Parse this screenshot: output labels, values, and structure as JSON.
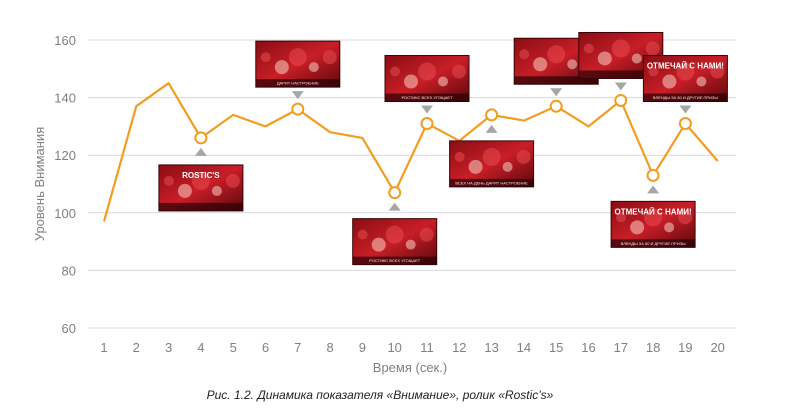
{
  "chart_data": {
    "type": "line",
    "x": [
      1,
      2,
      3,
      4,
      5,
      6,
      7,
      8,
      9,
      10,
      11,
      12,
      13,
      14,
      15,
      16,
      17,
      18,
      19,
      20
    ],
    "series": [
      {
        "values": [
          97,
          137,
          145,
          126,
          134,
          130,
          136,
          128,
          126,
          107,
          131,
          125,
          134,
          132,
          137,
          130,
          139,
          113,
          131,
          118
        ]
      }
    ],
    "highlighted_x": [
      4,
      7,
      10,
      11,
      13,
      15,
      17,
      18,
      19
    ],
    "xlabel": "Время (сек.)",
    "ylabel": "Уровень Внимания",
    "ylim": [
      60,
      160
    ],
    "yticks": [
      60,
      80,
      100,
      120,
      140,
      160
    ],
    "grid": true,
    "color": "#f39c1f",
    "thumbnails": [
      {
        "x": 4,
        "position": "below",
        "title": "ROSTIC'S",
        "caption": ""
      },
      {
        "x": 7,
        "position": "above",
        "title": "",
        "caption": "ДАРИТ НАСТРОЕНИЕ"
      },
      {
        "x": 10,
        "position": "below",
        "title": "",
        "caption": "РОСТИКС ВСЕХ УГОЩАЕТ"
      },
      {
        "x": 11,
        "position": "above",
        "title": "",
        "caption": "РОСТИКС ВСЕХ УГОЩАЕТ"
      },
      {
        "x": 13,
        "position": "below",
        "title": "",
        "caption": "ВСЕХ НА ДЕНЬ  ДАРИТ НАСТРОЕНИЕ"
      },
      {
        "x": 15,
        "position": "above",
        "title": "",
        "caption": ""
      },
      {
        "x": 17,
        "position": "above",
        "title": "",
        "caption": ""
      },
      {
        "x": 18,
        "position": "below",
        "title": "ОТМЕЧАЙ С НАМИ!",
        "caption": "ВЛЕНДЫ ЗА 50 И ДРУГИЕ ПРИЗЫ"
      },
      {
        "x": 19,
        "position": "above",
        "title": "ОТМЕЧАЙ С НАМИ!",
        "caption": "ВЛЕНДЫ ЗА 50 И ДРУГИЕ ПРИЗЫ"
      }
    ]
  },
  "caption": "Рис. 1.2. Динамика показателя «Внимание», ролик «Rostic’s»"
}
